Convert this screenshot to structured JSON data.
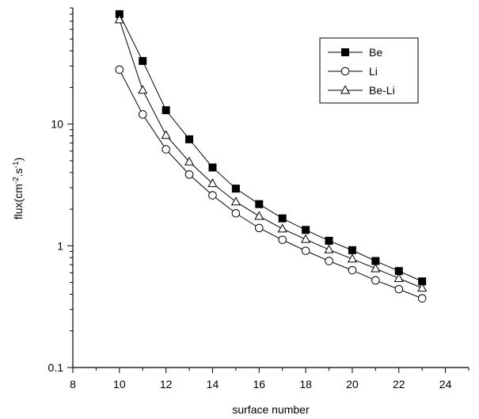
{
  "chart_data": {
    "type": "line",
    "title": "",
    "xlabel": "surface number",
    "ylabel": {
      "base": "flux(cm",
      "sup1": "-2",
      "mid": ".s",
      "sup2": "-1",
      "end": ")"
    },
    "xlim": [
      8,
      25
    ],
    "ylim": [
      0.1,
      90
    ],
    "y_scale": "log",
    "x_ticks": [
      8,
      10,
      12,
      14,
      16,
      18,
      20,
      22,
      24
    ],
    "x_tick_labels": [
      "8",
      "10",
      "12",
      "14",
      "16",
      "18",
      "20",
      "22",
      "24"
    ],
    "y_ticks": [
      0.1,
      1,
      10
    ],
    "y_tick_labels": [
      "0.1",
      "1",
      "10"
    ],
    "grid": false,
    "legend_position": "top-right",
    "x": [
      10,
      11,
      12,
      13,
      14,
      15,
      16,
      17,
      18,
      19,
      20,
      21,
      22,
      23
    ],
    "series": [
      {
        "name": "Be",
        "marker": "filled-square",
        "values": [
          80,
          33,
          13,
          7.5,
          4.4,
          2.95,
          2.2,
          1.68,
          1.35,
          1.1,
          0.92,
          0.75,
          0.62,
          0.51
        ]
      },
      {
        "name": "Li",
        "marker": "open-circle",
        "values": [
          28,
          12,
          6.2,
          3.85,
          2.6,
          1.85,
          1.4,
          1.12,
          0.91,
          0.75,
          0.63,
          0.52,
          0.44,
          0.37
        ]
      },
      {
        "name": "Be-Li",
        "marker": "open-triangle",
        "values": [
          72,
          19,
          8.1,
          4.9,
          3.25,
          2.3,
          1.75,
          1.38,
          1.13,
          0.93,
          0.78,
          0.65,
          0.54,
          0.45
        ]
      }
    ]
  }
}
